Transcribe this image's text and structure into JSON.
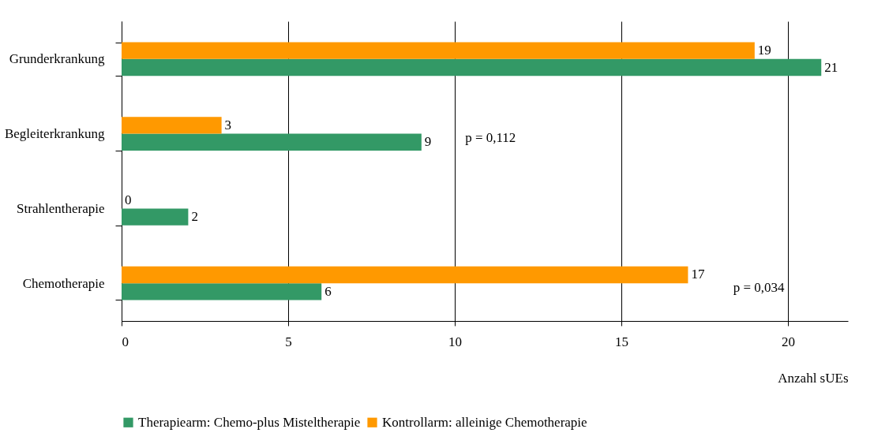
{
  "chart_data": {
    "type": "bar",
    "orientation": "horizontal",
    "categories": [
      "Grunderkrankung",
      "Begleiterkrankung",
      "Strahlentherapie",
      "Chemotherapie"
    ],
    "series": [
      {
        "name": "Therapiearm: Chemo-plus Misteltherapie",
        "color": "#339966",
        "values": [
          21,
          9,
          2,
          6
        ]
      },
      {
        "name": "Kontrollarm: alleinige Chemotherapie",
        "color": "#ff9900",
        "values": [
          19,
          3,
          0,
          17
        ]
      }
    ],
    "xlim": [
      0,
      21.8
    ],
    "xticks": [
      0,
      5,
      10,
      15,
      20
    ],
    "xlabel": "Anzahl sUEs",
    "grid": "x",
    "legend": "bottom",
    "data_labels": true,
    "annotations": [
      "p = 0,112",
      "p = 0,034"
    ]
  }
}
